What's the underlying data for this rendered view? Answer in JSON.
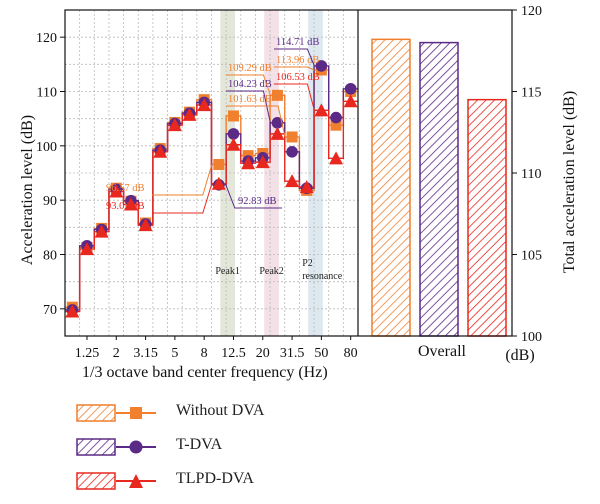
{
  "chart_data": [
    {
      "type": "line",
      "xlabel": "1/3 octave band center frequency (Hz)",
      "ylabel": "Acceleration level (dB)",
      "x_tick_labels": [
        "1.25",
        "2",
        "3.15",
        "5",
        "8",
        "12.5",
        "20",
        "31.5",
        "50",
        "80"
      ],
      "ylim": [
        65,
        125
      ],
      "y_ticks": [
        70,
        80,
        90,
        100,
        110,
        120
      ],
      "grid": true,
      "categories": [
        "1",
        "1.25",
        "1.6",
        "2",
        "2.5",
        "3.15",
        "4",
        "5",
        "6.3",
        "8",
        "10",
        "12.5",
        "16",
        "20",
        "25",
        "31.5",
        "40",
        "50",
        "63",
        "80"
      ],
      "series": [
        {
          "name": "Without DVA",
          "color": "#F07F2E",
          "marker": "square",
          "values": [
            70.3,
            81.3,
            84.8,
            92.2,
            89.8,
            85.8,
            99.5,
            104.3,
            106.2,
            108.5,
            96.57,
            105.5,
            98.2,
            98.6,
            109.29,
            101.63,
            91.8,
            113.96,
            103.8,
            110.0
          ]
        },
        {
          "name": "T-DVA",
          "color": "#5B2A86",
          "marker": "circle",
          "values": [
            69.8,
            81.6,
            84.6,
            92.0,
            89.9,
            85.6,
            99.2,
            104.1,
            106.0,
            108.0,
            92.83,
            102.2,
            97.2,
            97.8,
            104.23,
            98.9,
            92.2,
            114.71,
            105.2,
            110.5
          ]
        },
        {
          "name": "TLPD-DVA",
          "color": "#E8281E",
          "marker": "triangle",
          "values": [
            69.5,
            81.0,
            84.2,
            91.6,
            89.2,
            85.4,
            98.9,
            103.8,
            105.7,
            107.5,
            93.02,
            100.2,
            96.8,
            97.0,
            102.2,
            93.5,
            92.4,
            106.53,
            97.7,
            108.2
          ]
        }
      ],
      "annotations": [
        {
          "text": "96.57 dB",
          "series": "Without DVA",
          "x_index": 10,
          "y": 96.57,
          "side": "left"
        },
        {
          "text": "93.02 dB",
          "series": "TLPD-DVA",
          "x_index": 10,
          "y": 93.02,
          "side": "left"
        },
        {
          "text": "92.83 dB",
          "series": "T-DVA",
          "x_index": 10,
          "y": 92.83,
          "side": "right"
        },
        {
          "text": "104.23 dB",
          "series": "T-DVA",
          "x_index": 14,
          "y": 104.23,
          "side": "left"
        },
        {
          "text": "101.63 dB",
          "series": "Without DVA",
          "x_index": 15,
          "y": 101.63,
          "side": "left"
        },
        {
          "text": "109.29 dB",
          "series": "Without DVA",
          "x_index": 14,
          "y": 109.29,
          "side": "left"
        },
        {
          "text": "113.96 dB",
          "series": "Without DVA",
          "x_index": 17,
          "y": 113.96,
          "side": "left"
        },
        {
          "text": "106.53 dB",
          "series": "TLPD-DVA",
          "x_index": 17,
          "y": 106.53,
          "side": "left"
        },
        {
          "text": "114.71 dB",
          "series": "T-DVA",
          "x_index": 17,
          "y": 114.71,
          "side": "left"
        }
      ],
      "regions": [
        {
          "label": "Peak1",
          "from_index": 10.6,
          "to_index": 11.6,
          "color": "#DDE3D2"
        },
        {
          "label": "Peak2",
          "from_index": 13.6,
          "to_index": 14.6,
          "color": "#F1DCE3"
        },
        {
          "label": "P2 resonance",
          "from_index": 16.6,
          "to_index": 17.6,
          "color": "#D8E4EC"
        }
      ]
    },
    {
      "type": "bar",
      "xlabel": "Overall",
      "ylabel": "Total acceleration level (dB)",
      "unit_label": "(dB)",
      "ylim": [
        100,
        120
      ],
      "y_ticks": [
        100,
        105,
        110,
        115,
        120
      ],
      "categories": [
        "Without DVA",
        "T-DVA",
        "TLPD-DVA"
      ],
      "values": [
        118.2,
        118.0,
        114.5
      ],
      "colors": [
        "#F07F2E",
        "#5B2A86",
        "#E8281E"
      ]
    }
  ],
  "legend": {
    "items": [
      {
        "label": "Without DVA",
        "color": "#F07F2E",
        "marker": "square"
      },
      {
        "label": "T-DVA",
        "color": "#5B2A86",
        "marker": "circle"
      },
      {
        "label": "TLPD-DVA",
        "color": "#E8281E",
        "marker": "triangle"
      }
    ]
  }
}
